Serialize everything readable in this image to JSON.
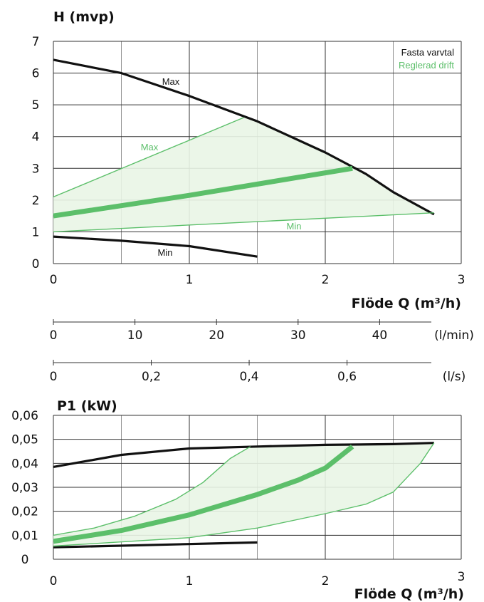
{
  "chart_data": [
    {
      "type": "line",
      "title": "",
      "ylabel": "H (mvp)",
      "xlabel": "Flöde Q (m³/h)",
      "xlim": [
        0,
        3
      ],
      "ylim": [
        0,
        7
      ],
      "x_ticks": [
        0,
        1,
        2,
        3
      ],
      "y_ticks": [
        0,
        1,
        2,
        3,
        4,
        5,
        6,
        7
      ],
      "grid": true,
      "legend": {
        "position": "top-right",
        "items": [
          {
            "label": "Fasta varvtal",
            "color": "#111111"
          },
          {
            "label": "Reglerad drift",
            "color": "#5cbf6a"
          }
        ]
      },
      "series": [
        {
          "name": "Max",
          "group": "Fasta varvtal",
          "color": "#111111",
          "points": [
            [
              0,
              6.42
            ],
            [
              0.5,
              6.0
            ],
            [
              1.0,
              5.28
            ],
            [
              1.5,
              4.48
            ],
            [
              2.0,
              3.5
            ],
            [
              2.3,
              2.82
            ],
            [
              2.5,
              2.25
            ],
            [
              2.8,
              1.55
            ]
          ]
        },
        {
          "name": "Min",
          "group": "Fasta varvtal",
          "color": "#111111",
          "points": [
            [
              0,
              0.85
            ],
            [
              0.5,
              0.72
            ],
            [
              1.0,
              0.55
            ],
            [
              1.5,
              0.22
            ]
          ]
        },
        {
          "name": "Max",
          "group": "Reglerad drift",
          "color": "#5cbf6a",
          "points": [
            [
              0,
              2.1
            ],
            [
              1.4,
              4.6
            ]
          ]
        },
        {
          "name": "",
          "group": "Reglerad drift",
          "color": "#5cbf6a",
          "points": [
            [
              0,
              1.5
            ],
            [
              1.0,
              2.15
            ],
            [
              2.2,
              3.0
            ]
          ]
        },
        {
          "name": "Min",
          "group": "Reglerad drift",
          "color": "#5cbf6a",
          "points": [
            [
              0,
              1.0
            ],
            [
              2.8,
              1.6
            ]
          ]
        }
      ],
      "secondary_axes": [
        {
          "unit": "(l/min)",
          "ticks": [
            "0",
            "10",
            "20",
            "30",
            "40"
          ],
          "values": [
            0,
            10,
            20,
            30,
            40
          ],
          "max": 50
        },
        {
          "unit": "(l/s)",
          "ticks": [
            "0",
            "0,2",
            "0,4",
            "0,6"
          ],
          "values": [
            0,
            0.2,
            0.4,
            0.6
          ],
          "max": 0.8333
        }
      ]
    },
    {
      "type": "line",
      "title": "",
      "ylabel": "P1 (kW)",
      "xlabel": "Flöde Q (m³/h)",
      "xlim": [
        0,
        3
      ],
      "ylim": [
        0,
        0.06
      ],
      "x_ticks": [
        0,
        1,
        2,
        3
      ],
      "y_ticks": [
        "0",
        "0,01",
        "0,02",
        "0,03",
        "0,04",
        "0,05",
        "0,06"
      ],
      "grid": true,
      "series": [
        {
          "name": "",
          "group": "Fasta varvtal",
          "color": "#111111",
          "points": [
            [
              0,
              0.0385
            ],
            [
              0.5,
              0.0435
            ],
            [
              1.0,
              0.0462
            ],
            [
              1.5,
              0.047
            ],
            [
              2.0,
              0.0477
            ],
            [
              2.5,
              0.048
            ],
            [
              2.8,
              0.0485
            ]
          ]
        },
        {
          "name": "",
          "group": "Fasta varvtal",
          "color": "#111111",
          "points": [
            [
              0,
              0.005
            ],
            [
              1.5,
              0.007
            ]
          ]
        },
        {
          "name": "",
          "group": "Reglerad drift",
          "color": "#5cbf6a",
          "points": [
            [
              0,
              0.01
            ],
            [
              0.3,
              0.013
            ],
            [
              0.6,
              0.018
            ],
            [
              0.9,
              0.025
            ],
            [
              1.1,
              0.032
            ],
            [
              1.3,
              0.042
            ],
            [
              1.45,
              0.047
            ]
          ]
        },
        {
          "name": "",
          "group": "Reglerad drift",
          "color": "#5cbf6a",
          "points": [
            [
              0,
              0.0075
            ],
            [
              0.5,
              0.012
            ],
            [
              1.0,
              0.0185
            ],
            [
              1.5,
              0.027
            ],
            [
              1.8,
              0.033
            ],
            [
              2.0,
              0.038
            ],
            [
              2.2,
              0.047
            ]
          ]
        },
        {
          "name": "",
          "group": "Reglerad drift",
          "color": "#5cbf6a",
          "points": [
            [
              0,
              0.0055
            ],
            [
              1.0,
              0.009
            ],
            [
              1.5,
              0.013
            ],
            [
              2.0,
              0.019
            ],
            [
              2.3,
              0.023
            ],
            [
              2.5,
              0.028
            ],
            [
              2.7,
              0.04
            ],
            [
              2.8,
              0.0485
            ]
          ]
        }
      ]
    }
  ]
}
